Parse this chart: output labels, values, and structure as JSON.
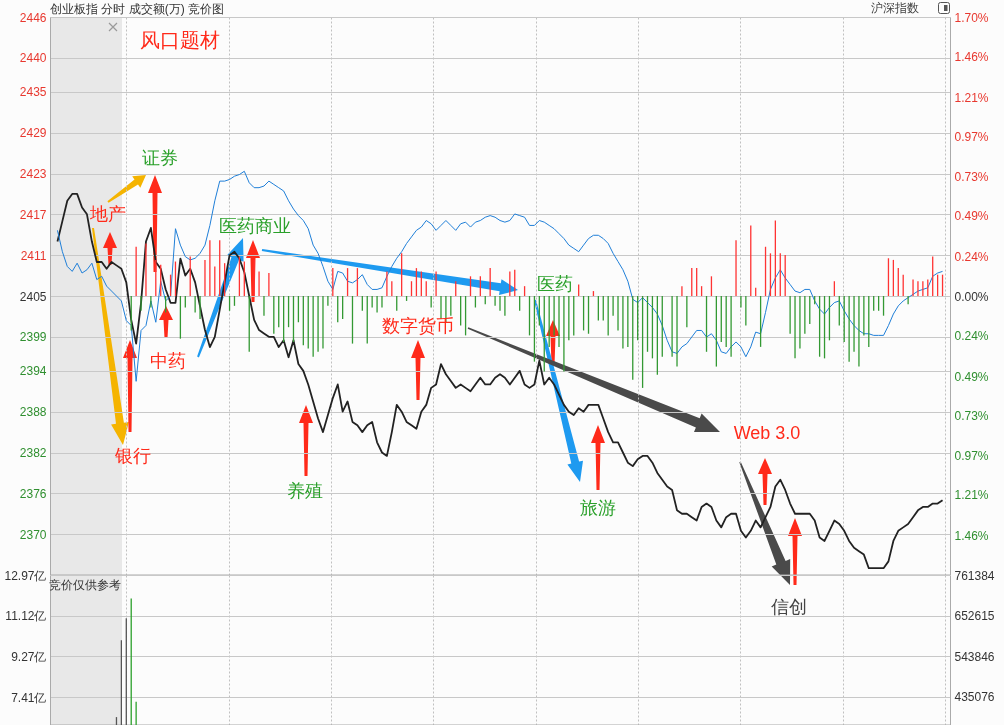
{
  "chart_data": [
    {
      "type": "line",
      "title": "创业板指  分时 成交额(万) 竞价图",
      "categories": [
        null,
        null,
        null,
        null,
        null,
        null,
        null,
        null,
        null,
        null,
        null,
        null,
        null,
        null,
        null,
        null,
        null,
        null,
        null,
        null,
        null,
        null,
        null,
        null,
        null,
        null,
        null,
        null,
        null,
        null,
        null,
        null,
        null,
        null,
        null,
        null,
        null,
        null,
        null,
        null,
        null,
        null,
        null,
        null,
        null,
        null,
        null,
        null,
        null,
        null,
        null,
        null,
        null,
        null,
        null,
        null,
        null,
        null,
        null,
        null,
        null,
        null,
        null,
        null,
        null,
        null,
        null,
        null,
        null,
        null,
        null,
        null,
        null,
        null,
        null,
        null,
        null,
        null,
        null,
        null,
        null,
        null,
        null,
        null,
        null,
        null,
        null,
        null,
        null,
        null,
        null,
        null,
        null,
        null,
        null,
        null,
        null,
        null,
        null,
        null,
        null,
        null,
        null,
        null,
        null,
        null,
        null,
        null,
        null,
        null,
        null,
        null,
        null,
        null,
        null,
        null,
        null,
        null,
        null,
        null,
        null,
        null,
        null,
        null,
        null,
        null,
        null,
        null,
        null,
        null,
        null,
        null,
        null,
        null,
        null,
        null,
        null,
        null,
        null,
        null,
        null,
        null,
        null,
        null,
        null,
        null,
        null,
        null,
        null,
        null,
        null,
        null,
        null,
        null,
        null,
        null,
        null,
        null,
        null,
        null,
        null,
        null,
        null,
        null,
        null,
        null,
        null,
        null,
        null,
        null,
        null,
        null,
        null,
        null,
        null,
        null,
        null,
        null,
        null,
        null,
        null
      ],
      "series": [
        {
          "color": "#222222",
          "values": [
            2413,
            2416,
            2419,
            2420,
            2420,
            2418,
            2417,
            2413,
            2410,
            2410,
            2409,
            2410,
            2409.5,
            2409,
            2407,
            2401.5,
            2398,
            2404,
            2413,
            2415,
            2410,
            2409,
            2406,
            2404,
            2404,
            2410.5,
            2408,
            2409,
            2407,
            2403.5,
            2400,
            2397.5,
            2399,
            2403,
            2407,
            2411,
            2411.5,
            2410.5,
            2408.5,
            2405,
            2401.5,
            2400,
            2399.5,
            2399,
            2399,
            2397.5,
            2398.5,
            2396,
            2398.5,
            2395,
            2394,
            2392,
            2389.5,
            2387,
            2385,
            2387.5,
            2390,
            2392,
            2388,
            2389.5,
            2386.5,
            2386,
            2385,
            2386,
            2386.5,
            2383.5,
            2382,
            2381.5,
            2385,
            2389,
            2388,
            2386.5,
            2386,
            2385.5,
            2388,
            2389,
            2391.5,
            2392,
            2395,
            2393.5,
            2392.5,
            2391.5,
            2392,
            2391.5,
            2391,
            2392,
            2393,
            2392,
            2392,
            2393,
            2393.5,
            2393,
            2392,
            2393,
            2394,
            2392,
            2391.5,
            2392,
            2395.5,
            2392,
            2393,
            2392,
            2390.5,
            2389,
            2388,
            2387.5,
            2388.5,
            2388,
            2389,
            2389,
            2389,
            2387,
            2385,
            2383.5,
            2383.5,
            2382,
            2380.5,
            2380,
            2381,
            2381.5,
            2381.5,
            2380.5,
            2379,
            2378,
            2377,
            2376.5,
            2373.5,
            2373,
            2373,
            2372.5,
            2372,
            2374,
            2374.5,
            2374,
            2372,
            2371,
            2372.5,
            2373,
            2373,
            2370.5,
            2369.5,
            2370.5,
            2372,
            2371,
            2372.5,
            2374,
            2377,
            2378,
            2376.5,
            2374.5,
            2373,
            2373,
            2373,
            2373,
            2372,
            2369.5,
            2369,
            2370.5,
            2372,
            2371.5,
            2370.5,
            2369,
            2368,
            2367.5,
            2367,
            2365,
            2365,
            2365,
            2365,
            2366,
            2369,
            2370.5,
            2371,
            2371.5,
            2372.5,
            2373.5,
            2374,
            2374,
            2374.5,
            2374.5,
            2375
          ]
        },
        {
          "color": "#1f7fd8",
          "axis": "y2",
          "values": [
            0.4,
            0.27,
            0.18,
            0.15,
            0.2,
            0.14,
            0.16,
            0.2,
            0.1,
            0.12,
            0.06,
            0.03,
            0.0,
            -0.03,
            -0.15,
            -0.18,
            -0.52,
            -0.21,
            -0.18,
            -0.03,
            -0.16,
            0.09,
            -0.03,
            0.0,
            0.41,
            0.31,
            0.24,
            0.22,
            0.23,
            0.26,
            0.31,
            0.43,
            0.58,
            0.7,
            0.7,
            0.71,
            0.73,
            0.74,
            0.76,
            0.69,
            0.66,
            0.66,
            0.67,
            0.7,
            0.68,
            0.66,
            0.64,
            0.58,
            0.53,
            0.49,
            0.46,
            0.41,
            0.31,
            0.26,
            0.18,
            0.09,
            0.04,
            0.15,
            0.14,
            0.09,
            0.08,
            0.1,
            0.13,
            0.07,
            0.04,
            0.04,
            0.05,
            0.12,
            0.18,
            0.23,
            0.27,
            0.32,
            0.36,
            0.4,
            0.42,
            0.46,
            0.44,
            0.4,
            0.43,
            0.46,
            0.43,
            0.4,
            0.44,
            0.45,
            0.42,
            0.45,
            0.46,
            0.48,
            0.49,
            0.48,
            0.46,
            0.45,
            0.46,
            0.5,
            0.49,
            0.48,
            0.43,
            0.43,
            0.46,
            0.45,
            0.43,
            0.41,
            0.38,
            0.35,
            0.31,
            0.29,
            0.27,
            0.31,
            0.35,
            0.37,
            0.37,
            0.35,
            0.32,
            0.26,
            0.21,
            0.16,
            0.09,
            -0.02,
            -0.04,
            -0.01,
            -0.04,
            -0.07,
            -0.11,
            -0.18,
            -0.27,
            -0.34,
            -0.35,
            -0.31,
            -0.29,
            -0.25,
            -0.21,
            -0.21,
            -0.25,
            -0.23,
            -0.27,
            -0.34,
            -0.35,
            -0.31,
            -0.28,
            -0.31,
            -0.37,
            -0.31,
            -0.22,
            -0.23,
            -0.1,
            0.04,
            0.11,
            0.16,
            0.11,
            0.07,
            0.03,
            0.02,
            0.04,
            0.04,
            -0.03,
            -0.08,
            -0.11,
            -0.07,
            -0.04,
            -0.03,
            -0.09,
            -0.14,
            -0.18,
            -0.21,
            -0.23,
            -0.23,
            -0.24,
            -0.24,
            -0.24,
            -0.18,
            -0.11,
            -0.06,
            -0.03,
            -0.01,
            0.01,
            0.03,
            0.04,
            0.05,
            0.12,
            0.14,
            0.15
          ]
        },
        {
          "type": "bar",
          "color": "#ff3333",
          "axis": "y2",
          "values": [
            null,
            null,
            null,
            null,
            null,
            null,
            null,
            null,
            null,
            null,
            null,
            null,
            null,
            null,
            null,
            null,
            0.3,
            null,
            0.32,
            null,
            0.22,
            0.19,
            null,
            0.13,
            0.21,
            null,
            null,
            0.24,
            null,
            null,
            0.22,
            0.34,
            0.18,
            0.34,
            0.2,
            null,
            null,
            0.24,
            0.21,
            null,
            0.22,
            0.15,
            null,
            0.14,
            null,
            null,
            null,
            null,
            null,
            null,
            null,
            null,
            null,
            null,
            null,
            null,
            0.17,
            null,
            null,
            0.17,
            null,
            0.17,
            null,
            null,
            null,
            null,
            null,
            0.15,
            0.09,
            null,
            0.26,
            null,
            0.09,
            0.17,
            0.15,
            0.09,
            null,
            0.15,
            null,
            null,
            null,
            0.09,
            null,
            null,
            0.12,
            null,
            0.12,
            null,
            0.17,
            null,
            null,
            null,
            0.15,
            0.16,
            null,
            0.06,
            null,
            null,
            null,
            null,
            null,
            null,
            null,
            null,
            null,
            null,
            0.07,
            null,
            null,
            0.03,
            null,
            null,
            null,
            null,
            null,
            null,
            null,
            null,
            null,
            null,
            null,
            null,
            null,
            null,
            null,
            null,
            null,
            0.06,
            null,
            0.17,
            0.17,
            0.06,
            null,
            0.12,
            null,
            null,
            null,
            null,
            0.34,
            null,
            null,
            0.43,
            0.05,
            null,
            0.3,
            0.26,
            0.46,
            0.26,
            0.25,
            null,
            null,
            null,
            null,
            null,
            null,
            null,
            null,
            null,
            0.09,
            null,
            null,
            null,
            null,
            null,
            null,
            null,
            null,
            null,
            null,
            0.23,
            0.22,
            0.17,
            0.13,
            null,
            0.1,
            0.09,
            0.09,
            0.1,
            0.24,
            0.13,
            0.13
          ]
        },
        {
          "type": "bar",
          "color": "#339933",
          "axis": "y2",
          "values": [
            null,
            null,
            null,
            null,
            null,
            null,
            null,
            null,
            null,
            null,
            null,
            null,
            null,
            null,
            null,
            -0.21,
            null,
            -0.09,
            null,
            -0.07,
            null,
            null,
            -0.1,
            null,
            null,
            -0.26,
            -0.07,
            null,
            -0.1,
            -0.14,
            null,
            null,
            null,
            null,
            null,
            -0.09,
            -0.06,
            null,
            null,
            -0.34,
            null,
            null,
            -0.12,
            null,
            -0.23,
            -0.19,
            -0.28,
            -0.19,
            -0.28,
            -0.16,
            -0.3,
            -0.32,
            -0.37,
            -0.34,
            -0.32,
            -0.06,
            null,
            -0.16,
            -0.14,
            null,
            -0.29,
            null,
            -0.09,
            -0.29,
            -0.07,
            -0.1,
            -0.07,
            null,
            null,
            -0.09,
            null,
            -0.03,
            null,
            null,
            null,
            null,
            -0.07,
            null,
            -0.14,
            -0.16,
            -0.12,
            null,
            -0.18,
            -0.24,
            null,
            -0.07,
            null,
            -0.05,
            null,
            -0.06,
            -0.09,
            -0.12,
            null,
            null,
            -0.09,
            null,
            -0.24,
            -0.4,
            -0.18,
            -0.46,
            -0.31,
            -0.24,
            -0.31,
            -0.46,
            -0.27,
            -0.24,
            null,
            -0.21,
            -0.23,
            null,
            -0.15,
            -0.15,
            -0.24,
            -0.12,
            -0.21,
            -0.32,
            -0.31,
            -0.51,
            -0.27,
            -0.56,
            -0.34,
            -0.38,
            -0.48,
            -0.37,
            null,
            -0.37,
            -0.43,
            null,
            -0.19,
            null,
            null,
            null,
            -0.34,
            null,
            -0.43,
            -0.28,
            -0.31,
            -0.37,
            null,
            -0.07,
            -0.18,
            null,
            null,
            -0.31,
            null,
            null,
            null,
            null,
            null,
            -0.23,
            -0.38,
            -0.32,
            -0.23,
            -0.17,
            -0.05,
            -0.37,
            -0.38,
            -0.27,
            null,
            -0.18,
            -0.28,
            -0.4,
            -0.34,
            -0.43,
            -0.24,
            -0.31,
            -0.09,
            -0.09,
            -0.12,
            null,
            null,
            null,
            null,
            -0.05,
            null,
            null,
            null,
            null,
            null,
            null,
            null
          ]
        }
      ],
      "ylim": [
        2364,
        2446
      ],
      "yticks": [
        2446,
        2440,
        2435,
        2429,
        2423,
        2417,
        2411,
        2405,
        2399,
        2394,
        2388,
        2382,
        2376,
        2370
      ],
      "y2lim": [
        -1.7,
        1.7
      ],
      "y2ticks": [
        {
          "value": 1.7,
          "label": "1.70%"
        },
        {
          "value": 1.46,
          "label": "1.46%"
        },
        {
          "value": 1.21,
          "label": "1.21%"
        },
        {
          "value": 0.97,
          "label": "0.97%"
        },
        {
          "value": 0.73,
          "label": "0.73%"
        },
        {
          "value": 0.49,
          "label": "0.49%"
        },
        {
          "value": 0.24,
          "label": "0.24%"
        },
        {
          "value": 0,
          "label": "0.00%"
        },
        {
          "value": -0.24,
          "label": "0.24%"
        },
        {
          "value": -0.49,
          "label": "0.49%"
        },
        {
          "value": -0.73,
          "label": "0.73%"
        },
        {
          "value": -0.97,
          "label": "0.97%"
        },
        {
          "value": -1.21,
          "label": "1.21%"
        },
        {
          "value": -1.46,
          "label": "1.46%"
        }
      ],
      "grid": true,
      "annotations": [
        "风口题材",
        "地产",
        "证券",
        "医药商业",
        "中药",
        "银行",
        "养殖",
        "数字货币",
        "医药",
        "旅游",
        "Web 3.0",
        "信创",
        "沪深指数"
      ]
    },
    {
      "type": "bar",
      "categories": [
        null,
        null,
        null,
        null,
        null,
        null,
        null,
        null,
        null,
        null,
        null,
        null,
        null,
        null,
        null,
        null,
        null,
        null,
        null,
        null,
        null,
        null,
        null,
        null,
        null,
        null,
        null,
        null,
        null,
        null,
        null,
        null,
        null,
        null,
        null,
        null,
        null,
        null,
        null,
        null,
        null,
        null,
        null,
        null,
        null,
        null,
        null,
        null,
        null,
        null,
        null,
        null,
        null,
        null,
        null,
        null,
        null,
        null,
        null,
        null,
        null,
        null,
        null,
        null,
        null,
        null,
        null,
        null,
        null,
        null,
        null,
        null,
        null,
        null,
        null,
        null,
        null,
        null,
        null,
        null,
        null,
        null,
        null,
        null,
        null,
        null,
        null,
        null,
        null,
        null,
        null,
        null,
        null,
        null,
        null,
        null,
        null,
        null,
        null,
        null,
        null,
        null,
        null,
        null,
        null,
        null,
        null,
        null,
        null,
        null,
        null,
        null,
        null,
        null,
        null,
        null,
        null,
        null,
        null,
        null,
        null,
        null,
        null,
        null,
        null,
        null,
        null,
        null,
        null,
        null,
        null,
        null,
        null,
        null,
        null,
        null,
        null,
        null,
        null,
        null,
        null,
        null,
        null,
        null,
        null,
        null,
        null,
        null,
        null,
        null,
        null,
        null,
        null,
        null,
        null,
        null,
        null,
        null,
        null,
        null,
        null,
        null,
        null,
        null,
        null,
        null,
        null,
        null,
        null,
        null,
        null,
        null,
        null,
        null,
        null,
        null,
        null,
        null,
        null,
        null,
        null
      ],
      "series": [
        {
          "color": "#555555",
          "values": [
            null,
            null,
            null,
            null,
            null,
            null,
            null,
            null,
            null,
            null,
            null,
            null,
            6.5,
            10.0,
            11.0,
            null,
            null,
            null,
            null,
            null,
            null,
            null,
            null,
            null,
            null,
            null,
            null,
            null,
            null,
            null,
            null,
            null,
            null,
            null,
            null,
            null,
            null,
            null,
            null,
            null,
            null,
            null,
            null,
            null,
            null,
            null,
            null,
            null,
            null,
            null,
            null,
            null,
            null,
            null,
            null,
            null,
            null,
            null,
            null,
            null,
            null,
            null,
            null,
            null,
            null,
            null,
            null,
            null,
            null,
            null,
            null,
            null,
            null,
            null,
            null,
            null,
            null,
            null,
            null,
            null,
            null,
            null,
            null,
            null,
            null,
            null,
            null,
            null,
            null,
            null,
            null,
            null,
            null,
            null,
            null,
            null,
            null,
            null,
            null,
            null,
            null,
            null,
            null,
            null,
            null,
            null,
            null,
            null,
            null,
            null,
            null,
            null,
            null,
            null,
            null,
            null,
            null,
            null,
            null,
            null,
            null,
            null,
            null,
            null,
            null,
            null,
            null,
            null,
            null,
            null,
            null,
            null,
            null,
            null,
            null,
            null,
            null,
            null,
            null,
            null,
            null,
            null,
            null,
            null,
            null,
            null,
            null,
            null,
            null,
            null,
            null,
            null,
            null,
            null,
            null,
            null,
            null,
            null,
            null,
            null,
            null,
            null,
            null,
            null,
            null,
            null,
            null,
            null,
            null,
            null,
            null,
            null,
            null,
            null,
            null,
            null,
            null,
            null,
            null,
            null,
            null
          ]
        },
        {
          "color": "#2ca02c",
          "values": [
            null,
            null,
            null,
            null,
            null,
            null,
            null,
            null,
            null,
            null,
            null,
            null,
            null,
            null,
            null,
            11.9,
            7.2,
            null,
            null,
            null,
            null,
            null,
            null,
            null,
            null,
            null,
            null,
            null,
            null,
            null,
            null,
            null,
            null,
            null,
            null,
            null,
            null,
            null,
            null,
            null,
            null,
            null,
            null,
            null,
            null,
            null,
            null,
            null,
            null,
            null,
            null,
            null,
            null,
            null,
            null,
            null,
            null,
            null,
            null,
            null,
            null,
            null,
            null,
            null,
            null,
            null,
            null,
            null,
            null,
            null,
            null,
            null,
            null,
            null,
            null,
            null,
            null,
            null,
            null,
            null,
            null,
            null,
            null,
            null,
            null,
            null,
            null,
            null,
            null,
            null,
            null,
            null,
            null,
            null,
            null,
            null,
            null,
            null,
            null,
            null,
            null,
            null,
            null,
            null,
            null,
            null,
            null,
            null,
            null,
            null,
            null,
            null,
            null,
            null,
            null,
            null,
            null,
            null,
            null,
            null,
            null,
            null,
            null,
            null,
            null,
            null,
            null,
            null,
            null,
            null,
            null,
            null,
            null,
            null,
            null,
            null,
            null,
            null,
            null,
            null,
            null,
            null,
            null,
            null,
            null,
            null,
            null,
            null,
            null,
            null,
            null,
            null,
            null,
            null,
            null,
            null,
            null,
            null,
            null,
            null,
            null,
            null,
            null,
            null,
            null,
            null,
            null,
            null,
            null,
            null,
            null,
            null,
            null,
            null,
            null,
            null,
            null,
            null,
            null,
            null,
            null
          ]
        }
      ],
      "ylim": [
        6.14,
        12.97
      ],
      "yticks": [
        {
          "value": 12.97,
          "label": "12.97亿"
        },
        {
          "value": 11.12,
          "label": "11.12亿"
        },
        {
          "value": 9.27,
          "label": "9.27亿"
        },
        {
          "value": 7.41,
          "label": "7.41亿"
        }
      ],
      "y2lim": [
        360184,
        761384
      ],
      "y2ticks": [
        761384,
        652615,
        543846,
        435076
      ],
      "grid": true,
      "annotations": [
        "竞价仅供参考"
      ]
    }
  ]
}
